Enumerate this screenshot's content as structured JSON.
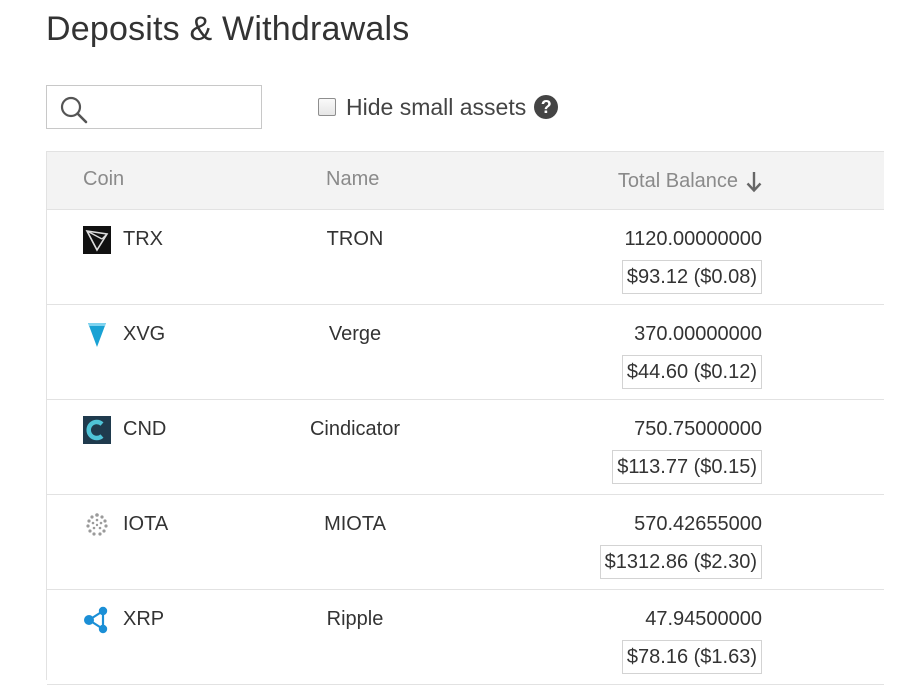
{
  "page": {
    "title": "Deposits & Withdrawals"
  },
  "search": {
    "value": "",
    "placeholder": ""
  },
  "filter": {
    "hide_small_label": "Hide small assets",
    "help_symbol": "?"
  },
  "table": {
    "headers": {
      "coin": "Coin",
      "name": "Name",
      "balance": "Total Balance"
    },
    "rows": [
      {
        "symbol": "TRX",
        "name": "TRON",
        "amount": "1120.00000000",
        "usd": "$93.12 ($0.08)",
        "icon": "tron-icon"
      },
      {
        "symbol": "XVG",
        "name": "Verge",
        "amount": "370.00000000",
        "usd": "$44.60 ($0.12)",
        "icon": "verge-icon"
      },
      {
        "symbol": "CND",
        "name": "Cindicator",
        "amount": "750.75000000",
        "usd": "$113.77 ($0.15)",
        "icon": "cindicator-icon"
      },
      {
        "symbol": "IOTA",
        "name": "MIOTA",
        "amount": "570.42655000",
        "usd": "$1312.86 ($2.30)",
        "icon": "iota-icon"
      },
      {
        "symbol": "XRP",
        "name": "Ripple",
        "amount": "47.94500000",
        "usd": "$78.16 ($1.63)",
        "icon": "ripple-icon"
      }
    ]
  },
  "colors": {
    "verge": "#19a2d4",
    "cindicator": "#1f3a4d",
    "ripple": "#1b8fd6",
    "header_bg": "#f3f3f3"
  }
}
